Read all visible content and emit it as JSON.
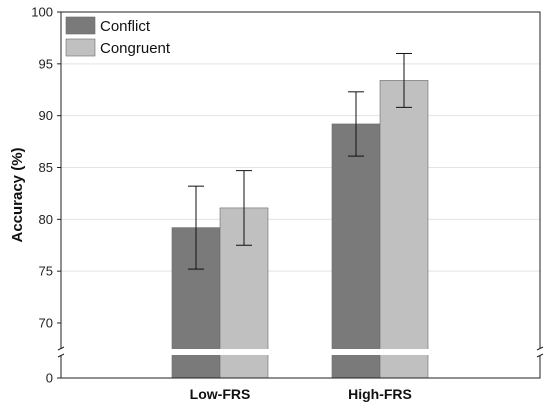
{
  "chart_data": {
    "type": "bar",
    "ylabel": "Accuracy (%)",
    "xlabel": "",
    "categories": [
      "Low-FRS",
      "High-FRS"
    ],
    "series": [
      {
        "name": "Conflict",
        "values": [
          79.2,
          89.2
        ],
        "error": [
          4.0,
          3.1
        ],
        "color": "#7a7a7a"
      },
      {
        "name": "Congruent",
        "values": [
          81.1,
          93.4
        ],
        "error": [
          3.6,
          2.6
        ],
        "color": "#c0c0c0"
      }
    ],
    "y_ticks_upper": [
      "70",
      "75",
      "80",
      "85",
      "90",
      "95",
      "100"
    ],
    "y_tick_lower": "0",
    "ylim": [
      0,
      100
    ],
    "axis_break": [
      0,
      70
    ],
    "grid": true,
    "legend_position": "top-left"
  }
}
